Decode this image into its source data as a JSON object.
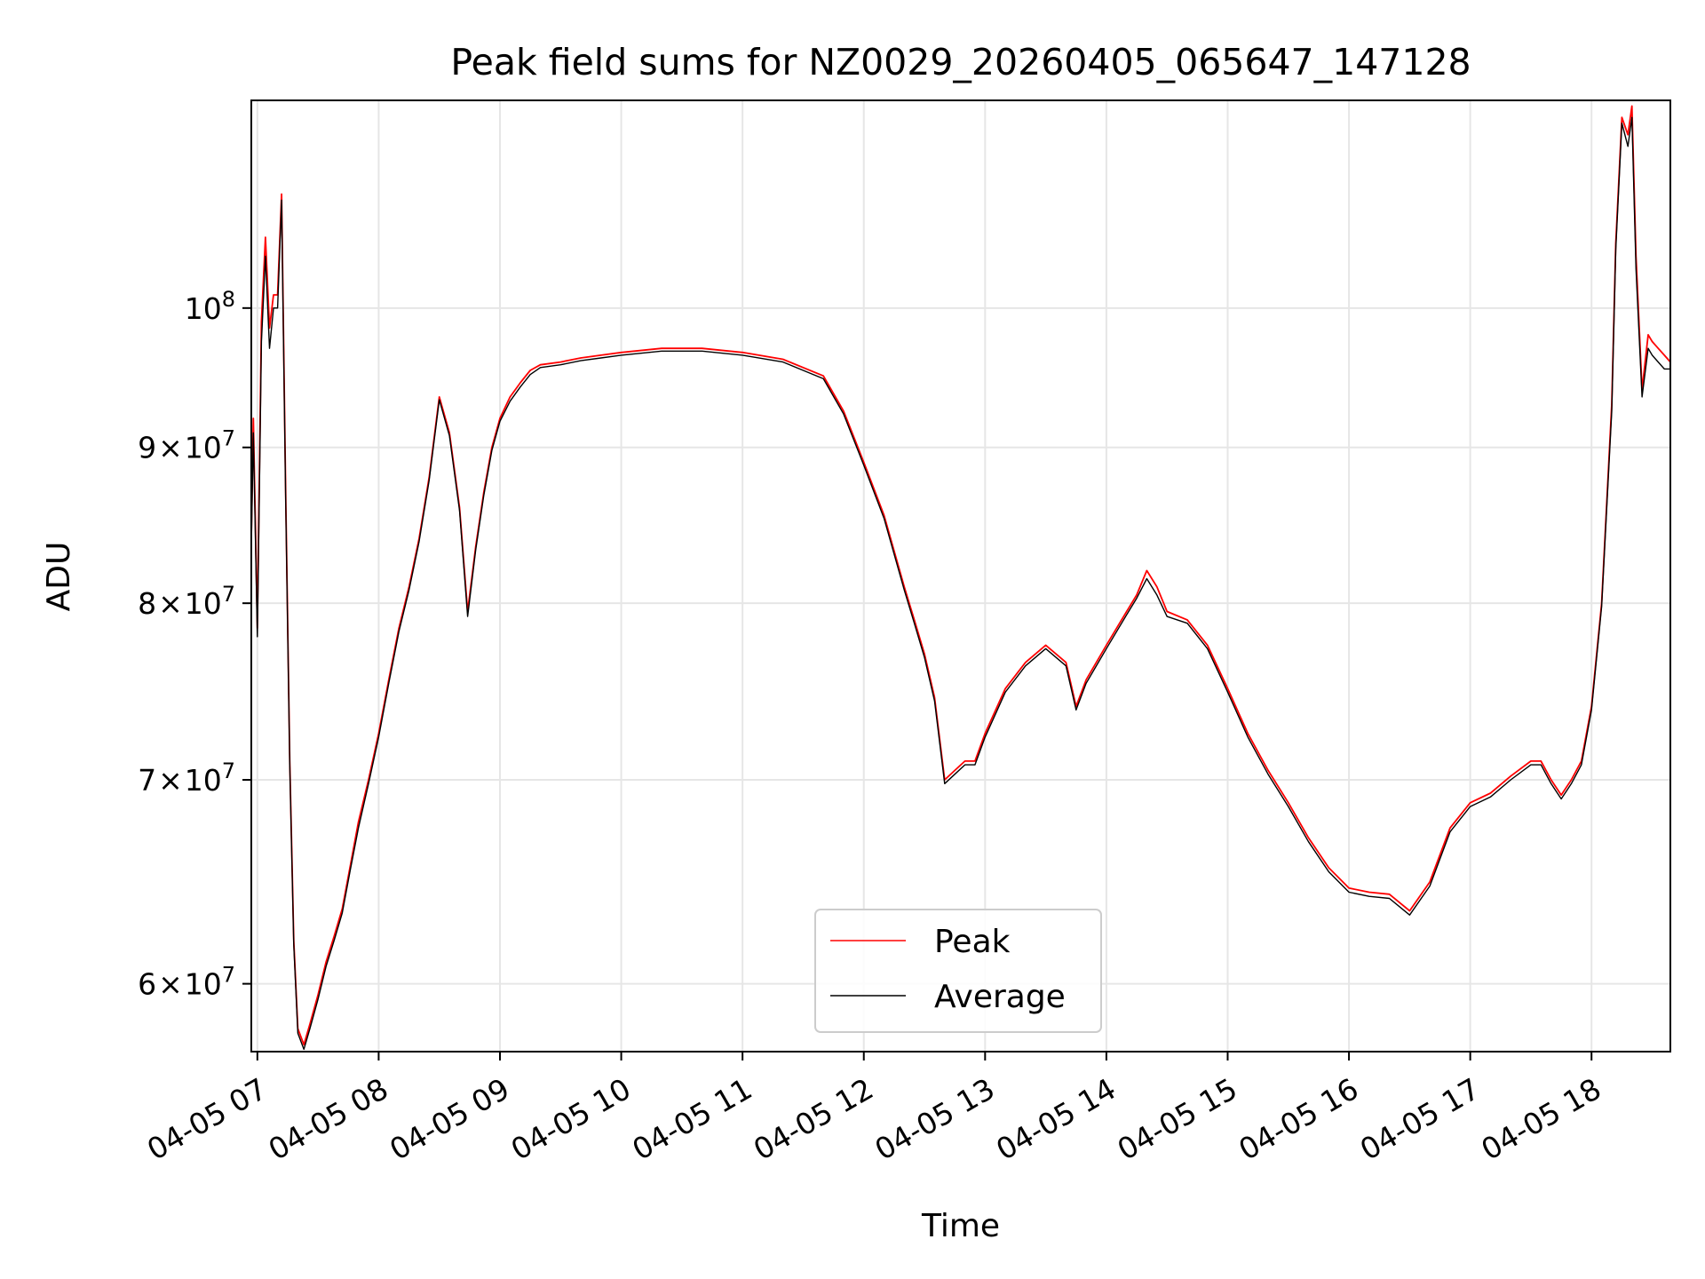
{
  "chart_data": {
    "type": "line",
    "title": "Peak field sums for NZ0029_20260405_065647_147128",
    "xlabel": "Time",
    "ylabel": "ADU",
    "y_scale": "log",
    "ylim": [
      57000000,
      117000000
    ],
    "xlim": [
      "04-05 06:57",
      "04-05 18:39"
    ],
    "grid": true,
    "legend_position": "lower center",
    "x_ticks": [
      {
        "t": "04-05 07:00",
        "label": "04-05 07"
      },
      {
        "t": "04-05 08:00",
        "label": "04-05 08"
      },
      {
        "t": "04-05 09:00",
        "label": "04-05 09"
      },
      {
        "t": "04-05 10:00",
        "label": "04-05 10"
      },
      {
        "t": "04-05 11:00",
        "label": "04-05 11"
      },
      {
        "t": "04-05 12:00",
        "label": "04-05 12"
      },
      {
        "t": "04-05 13:00",
        "label": "04-05 13"
      },
      {
        "t": "04-05 14:00",
        "label": "04-05 14"
      },
      {
        "t": "04-05 15:00",
        "label": "04-05 15"
      },
      {
        "t": "04-05 16:00",
        "label": "04-05 16"
      },
      {
        "t": "04-05 17:00",
        "label": "04-05 17"
      },
      {
        "t": "04-05 18:00",
        "label": "04-05 18"
      }
    ],
    "y_ticks": [
      {
        "value": 60000000,
        "base": "6",
        "mult": "×",
        "pow": "10",
        "exp": "7"
      },
      {
        "value": 70000000,
        "base": "7",
        "mult": "×",
        "pow": "10",
        "exp": "7"
      },
      {
        "value": 80000000,
        "base": "8",
        "mult": "×",
        "pow": "10",
        "exp": "7"
      },
      {
        "value": 90000000,
        "base": "9",
        "mult": "×",
        "pow": "10",
        "exp": "7"
      },
      {
        "value": 100000000,
        "base": "",
        "mult": "",
        "pow": "10",
        "exp": "8"
      }
    ],
    "series": [
      {
        "name": "Peak",
        "color": "#ff0000",
        "x": [
          "04-05 06:57",
          "04-05 06:58",
          "04-05 07:00",
          "04-05 07:02",
          "04-05 07:04",
          "04-05 07:06",
          "04-05 07:08",
          "04-05 07:10",
          "04-05 07:12",
          "04-05 07:14",
          "04-05 07:16",
          "04-05 07:18",
          "04-05 07:20",
          "04-05 07:23",
          "04-05 07:26",
          "04-05 07:30",
          "04-05 07:34",
          "04-05 07:38",
          "04-05 07:42",
          "04-05 07:46",
          "04-05 07:50",
          "04-05 07:55",
          "04-05 08:00",
          "04-05 08:05",
          "04-05 08:10",
          "04-05 08:15",
          "04-05 08:20",
          "04-05 08:25",
          "04-05 08:30",
          "04-05 08:35",
          "04-05 08:40",
          "04-05 08:44",
          "04-05 08:48",
          "04-05 08:52",
          "04-05 08:56",
          "04-05 09:00",
          "04-05 09:05",
          "04-05 09:10",
          "04-05 09:15",
          "04-05 09:20",
          "04-05 09:30",
          "04-05 09:40",
          "04-05 09:50",
          "04-05 10:00",
          "04-05 10:20",
          "04-05 10:40",
          "04-05 11:00",
          "04-05 11:20",
          "04-05 11:40",
          "04-05 11:50",
          "04-05 12:00",
          "04-05 12:10",
          "04-05 12:20",
          "04-05 12:25",
          "04-05 12:30",
          "04-05 12:35",
          "04-05 12:40",
          "04-05 12:45",
          "04-05 12:50",
          "04-05 12:55",
          "04-05 13:00",
          "04-05 13:10",
          "04-05 13:20",
          "04-05 13:30",
          "04-05 13:40",
          "04-05 13:45",
          "04-05 13:50",
          "04-05 14:00",
          "04-05 14:10",
          "04-05 14:15",
          "04-05 14:20",
          "04-05 14:25",
          "04-05 14:30",
          "04-05 14:40",
          "04-05 14:50",
          "04-05 15:00",
          "04-05 15:10",
          "04-05 15:20",
          "04-05 15:30",
          "04-05 15:40",
          "04-05 15:50",
          "04-05 16:00",
          "04-05 16:10",
          "04-05 16:20",
          "04-05 16:30",
          "04-05 16:40",
          "04-05 16:50",
          "04-05 17:00",
          "04-05 17:10",
          "04-05 17:20",
          "04-05 17:30",
          "04-05 17:35",
          "04-05 17:40",
          "04-05 17:45",
          "04-05 17:50",
          "04-05 17:55",
          "04-05 18:00",
          "04-05 18:05",
          "04-05 18:10",
          "04-05 18:12",
          "04-05 18:15",
          "04-05 18:18",
          "04-05 18:20",
          "04-05 18:22",
          "04-05 18:25",
          "04-05 18:28",
          "04-05 18:30",
          "04-05 18:33",
          "04-05 18:36",
          "04-05 18:39"
        ],
        "values": [
          84000000,
          92000000,
          78500000,
          99000000,
          105500000,
          98500000,
          101000000,
          101000000,
          109000000,
          87000000,
          71000000,
          62000000,
          58000000,
          57300000,
          58200000,
          59500000,
          61000000,
          62200000,
          63500000,
          65600000,
          67800000,
          70000000,
          72500000,
          75500000,
          78500000,
          81000000,
          84000000,
          88000000,
          93500000,
          91000000,
          86000000,
          79500000,
          83500000,
          87000000,
          90000000,
          92000000,
          93500000,
          94500000,
          95400000,
          95800000,
          96000000,
          96300000,
          96500000,
          96700000,
          97000000,
          97000000,
          96700000,
          96200000,
          95000000,
          92500000,
          89000000,
          85500000,
          81000000,
          79000000,
          77000000,
          74500000,
          70000000,
          70500000,
          71000000,
          71000000,
          72500000,
          75000000,
          76500000,
          77500000,
          76500000,
          74000000,
          75500000,
          77500000,
          79500000,
          80500000,
          82000000,
          81000000,
          79500000,
          79000000,
          77500000,
          75000000,
          72500000,
          70500000,
          68800000,
          67000000,
          65500000,
          64500000,
          64300000,
          64200000,
          63400000,
          64800000,
          67500000,
          68800000,
          69300000,
          70200000,
          71000000,
          71000000,
          70000000,
          69200000,
          70000000,
          71000000,
          74000000,
          80000000,
          93000000,
          105000000,
          115500000,
          114000000,
          116500000,
          104000000,
          94000000,
          98000000,
          97500000,
          97000000,
          96500000,
          96000000
        ]
      },
      {
        "name": "Average",
        "color": "#000000",
        "x": [
          "04-05 06:57",
          "04-05 06:58",
          "04-05 07:00",
          "04-05 07:02",
          "04-05 07:04",
          "04-05 07:06",
          "04-05 07:08",
          "04-05 07:10",
          "04-05 07:12",
          "04-05 07:14",
          "04-05 07:16",
          "04-05 07:18",
          "04-05 07:20",
          "04-05 07:23",
          "04-05 07:26",
          "04-05 07:30",
          "04-05 07:34",
          "04-05 07:38",
          "04-05 07:42",
          "04-05 07:46",
          "04-05 07:50",
          "04-05 07:55",
          "04-05 08:00",
          "04-05 08:05",
          "04-05 08:10",
          "04-05 08:15",
          "04-05 08:20",
          "04-05 08:25",
          "04-05 08:30",
          "04-05 08:35",
          "04-05 08:40",
          "04-05 08:44",
          "04-05 08:48",
          "04-05 08:52",
          "04-05 08:56",
          "04-05 09:00",
          "04-05 09:05",
          "04-05 09:10",
          "04-05 09:15",
          "04-05 09:20",
          "04-05 09:30",
          "04-05 09:40",
          "04-05 09:50",
          "04-05 10:00",
          "04-05 10:20",
          "04-05 10:40",
          "04-05 11:00",
          "04-05 11:20",
          "04-05 11:40",
          "04-05 11:50",
          "04-05 12:00",
          "04-05 12:10",
          "04-05 12:20",
          "04-05 12:25",
          "04-05 12:30",
          "04-05 12:35",
          "04-05 12:40",
          "04-05 12:45",
          "04-05 12:50",
          "04-05 12:55",
          "04-05 13:00",
          "04-05 13:10",
          "04-05 13:20",
          "04-05 13:30",
          "04-05 13:40",
          "04-05 13:45",
          "04-05 13:50",
          "04-05 14:00",
          "04-05 14:10",
          "04-05 14:15",
          "04-05 14:20",
          "04-05 14:25",
          "04-05 14:30",
          "04-05 14:40",
          "04-05 14:50",
          "04-05 15:00",
          "04-05 15:10",
          "04-05 15:20",
          "04-05 15:30",
          "04-05 15:40",
          "04-05 15:50",
          "04-05 16:00",
          "04-05 16:10",
          "04-05 16:20",
          "04-05 16:30",
          "04-05 16:40",
          "04-05 16:50",
          "04-05 17:00",
          "04-05 17:10",
          "04-05 17:20",
          "04-05 17:30",
          "04-05 17:35",
          "04-05 17:40",
          "04-05 17:45",
          "04-05 17:50",
          "04-05 17:55",
          "04-05 18:00",
          "04-05 18:05",
          "04-05 18:10",
          "04-05 18:12",
          "04-05 18:15",
          "04-05 18:18",
          "04-05 18:20",
          "04-05 18:22",
          "04-05 18:25",
          "04-05 18:28",
          "04-05 18:30",
          "04-05 18:33",
          "04-05 18:36",
          "04-05 18:39"
        ],
        "values": [
          83500000,
          91000000,
          78000000,
          97500000,
          104000000,
          97000000,
          100000000,
          100000000,
          108500000,
          86500000,
          70800000,
          61800000,
          57800000,
          57100000,
          58000000,
          59300000,
          60800000,
          62000000,
          63300000,
          65400000,
          67500000,
          69800000,
          72300000,
          75300000,
          78300000,
          80800000,
          83800000,
          87800000,
          93300000,
          90800000,
          85800000,
          79200000,
          83300000,
          86800000,
          89800000,
          91800000,
          93200000,
          94200000,
          95100000,
          95600000,
          95800000,
          96100000,
          96300000,
          96500000,
          96800000,
          96800000,
          96500000,
          96000000,
          94800000,
          92300000,
          88800000,
          85300000,
          80800000,
          78800000,
          76800000,
          74300000,
          69800000,
          70300000,
          70800000,
          70800000,
          72300000,
          74800000,
          76300000,
          77300000,
          76300000,
          73800000,
          75300000,
          77300000,
          79300000,
          80300000,
          81500000,
          80500000,
          79200000,
          78800000,
          77300000,
          74800000,
          72300000,
          70300000,
          68600000,
          66800000,
          65300000,
          64300000,
          64100000,
          64000000,
          63200000,
          64600000,
          67300000,
          68600000,
          69100000,
          70000000,
          70800000,
          70800000,
          69800000,
          69000000,
          69800000,
          70800000,
          73800000,
          79800000,
          92500000,
          104500000,
          115000000,
          113000000,
          115500000,
          103000000,
          93500000,
          97000000,
          96500000,
          96000000,
          95500000,
          95500000
        ]
      }
    ]
  }
}
